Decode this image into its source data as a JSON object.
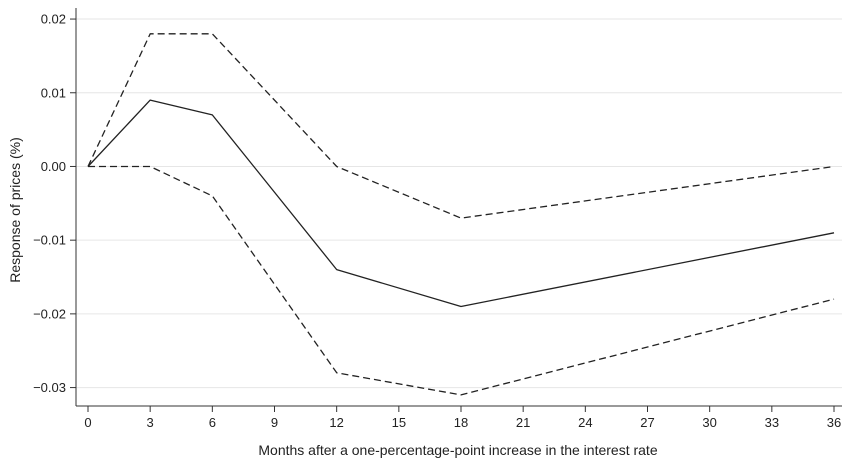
{
  "chart_data": {
    "type": "line",
    "title": "",
    "xlabel": "Months after a one-percentage-point increase in the interest rate",
    "ylabel": "Response of prices (%)",
    "x": [
      0,
      3,
      6,
      12,
      18,
      36
    ],
    "series": [
      {
        "values": [
          0,
          0.009,
          0.007,
          -0.014,
          -0.019,
          -0.009
        ],
        "style": "solid",
        "color": "#222222"
      },
      {
        "values": [
          0,
          0.018,
          0.018,
          0,
          -0.007,
          0
        ],
        "style": "dashed",
        "color": "#222222"
      },
      {
        "values": [
          0,
          0,
          -0.004,
          -0.028,
          -0.031,
          -0.018
        ],
        "style": "dashed",
        "color": "#222222"
      }
    ],
    "xticks": [
      0,
      3,
      6,
      9,
      12,
      15,
      18,
      21,
      24,
      27,
      30,
      33,
      36
    ],
    "xtick_labels": [
      "0",
      "3",
      "6",
      "9",
      "12",
      "15",
      "18",
      "21",
      "24",
      "27",
      "30",
      "33",
      "36"
    ],
    "yticks": [
      0.02,
      0.01,
      0,
      -0.01,
      -0.02,
      -0.03
    ],
    "ytick_labels": [
      "0.02",
      "0.01",
      "0.00",
      "−0.01",
      "−0.02",
      "−0.03"
    ],
    "xlim": [
      0,
      36
    ],
    "ylim": [
      -0.0325,
      0.0215
    ],
    "grid": "horizontal",
    "grid_color": "#e6e6e6",
    "legend": "none"
  }
}
